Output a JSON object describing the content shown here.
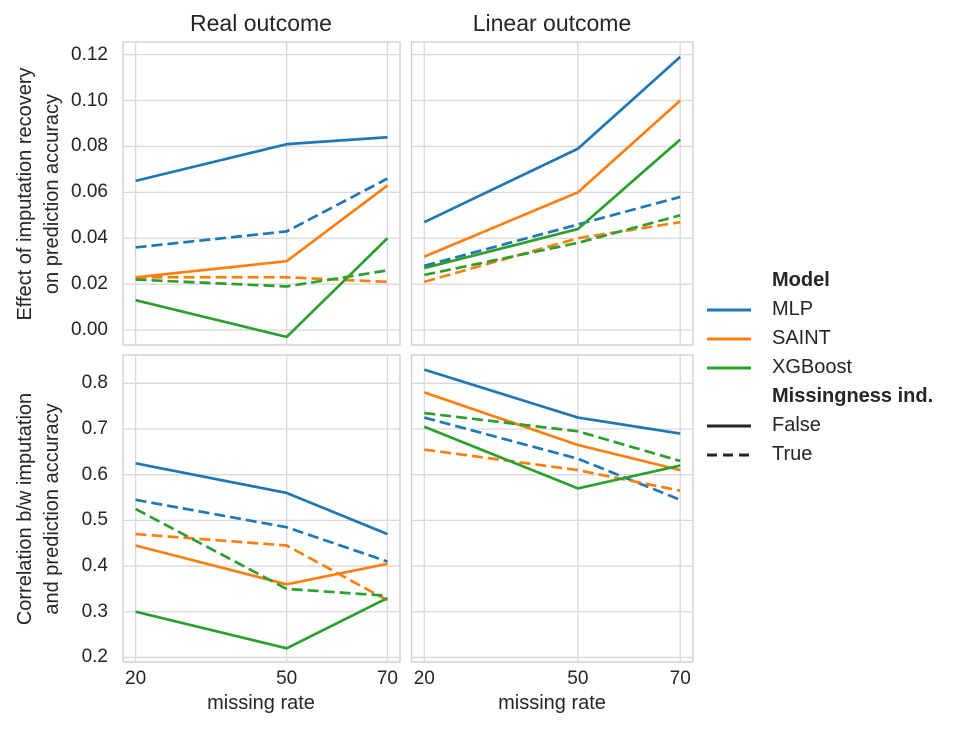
{
  "figure": {
    "col_titles": [
      "Real outcome",
      "Linear outcome"
    ],
    "ylabel_top": "Effect of imputation recovery\non prediction accuracy",
    "ylabel_bottom": "Correlation b/w imputation\nand prediction accuracy",
    "xlabel": "missing rate",
    "text_color": "#262626",
    "grid_color": "#d9d9d9",
    "spine_color": "#cccccc",
    "background_color": "#ffffff"
  },
  "legend": {
    "model_title": "Model",
    "models": [
      {
        "label": "MLP",
        "color": "#1f77b4"
      },
      {
        "label": "SAINT",
        "color": "#ff7f0e"
      },
      {
        "label": "XGBoost",
        "color": "#2ca02c"
      }
    ],
    "missingness_title": "Missingness ind.",
    "styles": [
      {
        "label": "False",
        "dash": "solid"
      },
      {
        "label": "True",
        "dash": "dashed"
      }
    ],
    "style_swatch_color": "#262626"
  },
  "chart_data": [
    {
      "type": "line",
      "panel": "top-left",
      "outcome": "Real outcome",
      "ylabel": "Effect of imputation recovery on prediction accuracy",
      "x": [
        20,
        50,
        70
      ],
      "xlim": [
        17.5,
        72.5
      ],
      "ylim": [
        -0.0065,
        0.1255
      ],
      "xticks": [
        {
          "value": 20,
          "label": "20"
        },
        {
          "value": 50,
          "label": "50"
        },
        {
          "value": 70,
          "label": "70"
        }
      ],
      "yticks": [
        {
          "value": 0.0,
          "label": "0.00"
        },
        {
          "value": 0.02,
          "label": "0.02"
        },
        {
          "value": 0.04,
          "label": "0.04"
        },
        {
          "value": 0.06,
          "label": "0.06"
        },
        {
          "value": 0.08,
          "label": "0.08"
        },
        {
          "value": 0.1,
          "label": "0.10"
        },
        {
          "value": 0.12,
          "label": "0.12"
        }
      ],
      "show_ytick_labels": true,
      "show_xtick_labels": false,
      "grid": true,
      "series": [
        {
          "model": "MLP",
          "missingness_ind": "False",
          "values": [
            0.065,
            0.081,
            0.084
          ]
        },
        {
          "model": "MLP",
          "missingness_ind": "True",
          "values": [
            0.036,
            0.043,
            0.066
          ]
        },
        {
          "model": "SAINT",
          "missingness_ind": "False",
          "values": [
            0.023,
            0.03,
            0.063
          ]
        },
        {
          "model": "SAINT",
          "missingness_ind": "True",
          "values": [
            0.023,
            0.023,
            0.021
          ]
        },
        {
          "model": "XGBoost",
          "missingness_ind": "False",
          "values": [
            0.013,
            -0.003,
            0.04
          ]
        },
        {
          "model": "XGBoost",
          "missingness_ind": "True",
          "values": [
            0.022,
            0.019,
            0.026
          ]
        }
      ]
    },
    {
      "type": "line",
      "panel": "top-right",
      "outcome": "Linear outcome",
      "ylabel": "Effect of imputation recovery on prediction accuracy",
      "x": [
        20,
        50,
        70
      ],
      "xlim": [
        17.5,
        72.5
      ],
      "ylim": [
        -0.0065,
        0.1255
      ],
      "xticks": [
        {
          "value": 20,
          "label": "20"
        },
        {
          "value": 50,
          "label": "50"
        },
        {
          "value": 70,
          "label": "70"
        }
      ],
      "yticks": [
        {
          "value": 0.0,
          "label": "0.00"
        },
        {
          "value": 0.02,
          "label": "0.02"
        },
        {
          "value": 0.04,
          "label": "0.04"
        },
        {
          "value": 0.06,
          "label": "0.06"
        },
        {
          "value": 0.08,
          "label": "0.08"
        },
        {
          "value": 0.1,
          "label": "0.10"
        },
        {
          "value": 0.12,
          "label": "0.12"
        }
      ],
      "show_ytick_labels": false,
      "show_xtick_labels": false,
      "grid": true,
      "series": [
        {
          "model": "MLP",
          "missingness_ind": "False",
          "values": [
            0.047,
            0.079,
            0.119
          ]
        },
        {
          "model": "MLP",
          "missingness_ind": "True",
          "values": [
            0.028,
            0.046,
            0.058
          ]
        },
        {
          "model": "SAINT",
          "missingness_ind": "False",
          "values": [
            0.032,
            0.06,
            0.1
          ]
        },
        {
          "model": "SAINT",
          "missingness_ind": "True",
          "values": [
            0.021,
            0.04,
            0.047
          ]
        },
        {
          "model": "XGBoost",
          "missingness_ind": "False",
          "values": [
            0.027,
            0.044,
            0.083
          ]
        },
        {
          "model": "XGBoost",
          "missingness_ind": "True",
          "values": [
            0.024,
            0.038,
            0.05
          ]
        }
      ]
    },
    {
      "type": "line",
      "panel": "bottom-left",
      "outcome": "Real outcome",
      "ylabel": "Correlation b/w imputation and prediction accuracy",
      "xlabel": "missing rate",
      "x": [
        20,
        50,
        70
      ],
      "xlim": [
        17.5,
        72.5
      ],
      "ylim": [
        0.19,
        0.862
      ],
      "xticks": [
        {
          "value": 20,
          "label": "20"
        },
        {
          "value": 50,
          "label": "50"
        },
        {
          "value": 70,
          "label": "70"
        }
      ],
      "yticks": [
        {
          "value": 0.2,
          "label": "0.2"
        },
        {
          "value": 0.3,
          "label": "0.3"
        },
        {
          "value": 0.4,
          "label": "0.4"
        },
        {
          "value": 0.5,
          "label": "0.5"
        },
        {
          "value": 0.6,
          "label": "0.6"
        },
        {
          "value": 0.7,
          "label": "0.7"
        },
        {
          "value": 0.8,
          "label": "0.8"
        }
      ],
      "show_ytick_labels": true,
      "show_xtick_labels": true,
      "grid": true,
      "series": [
        {
          "model": "MLP",
          "missingness_ind": "False",
          "values": [
            0.625,
            0.56,
            0.47
          ]
        },
        {
          "model": "MLP",
          "missingness_ind": "True",
          "values": [
            0.545,
            0.485,
            0.41
          ]
        },
        {
          "model": "SAINT",
          "missingness_ind": "False",
          "values": [
            0.445,
            0.36,
            0.405
          ]
        },
        {
          "model": "SAINT",
          "missingness_ind": "True",
          "values": [
            0.47,
            0.445,
            0.325
          ]
        },
        {
          "model": "XGBoost",
          "missingness_ind": "False",
          "values": [
            0.3,
            0.22,
            0.33
          ]
        },
        {
          "model": "XGBoost",
          "missingness_ind": "True",
          "values": [
            0.525,
            0.35,
            0.335
          ]
        }
      ]
    },
    {
      "type": "line",
      "panel": "bottom-right",
      "outcome": "Linear outcome",
      "ylabel": "Correlation b/w imputation and prediction accuracy",
      "xlabel": "missing rate",
      "x": [
        20,
        50,
        70
      ],
      "xlim": [
        17.5,
        72.5
      ],
      "ylim": [
        0.19,
        0.862
      ],
      "xticks": [
        {
          "value": 20,
          "label": "20"
        },
        {
          "value": 50,
          "label": "50"
        },
        {
          "value": 70,
          "label": "70"
        }
      ],
      "yticks": [
        {
          "value": 0.2,
          "label": "0.2"
        },
        {
          "value": 0.3,
          "label": "0.3"
        },
        {
          "value": 0.4,
          "label": "0.4"
        },
        {
          "value": 0.5,
          "label": "0.5"
        },
        {
          "value": 0.6,
          "label": "0.6"
        },
        {
          "value": 0.7,
          "label": "0.7"
        },
        {
          "value": 0.8,
          "label": "0.8"
        }
      ],
      "show_ytick_labels": false,
      "show_xtick_labels": true,
      "grid": true,
      "series": [
        {
          "model": "MLP",
          "missingness_ind": "False",
          "values": [
            0.83,
            0.725,
            0.69
          ]
        },
        {
          "model": "MLP",
          "missingness_ind": "True",
          "values": [
            0.725,
            0.635,
            0.545
          ]
        },
        {
          "model": "SAINT",
          "missingness_ind": "False",
          "values": [
            0.78,
            0.665,
            0.61
          ]
        },
        {
          "model": "SAINT",
          "missingness_ind": "True",
          "values": [
            0.655,
            0.61,
            0.565
          ]
        },
        {
          "model": "XGBoost",
          "missingness_ind": "False",
          "values": [
            0.705,
            0.57,
            0.62
          ]
        },
        {
          "model": "XGBoost",
          "missingness_ind": "True",
          "values": [
            0.735,
            0.695,
            0.63
          ]
        }
      ]
    }
  ]
}
